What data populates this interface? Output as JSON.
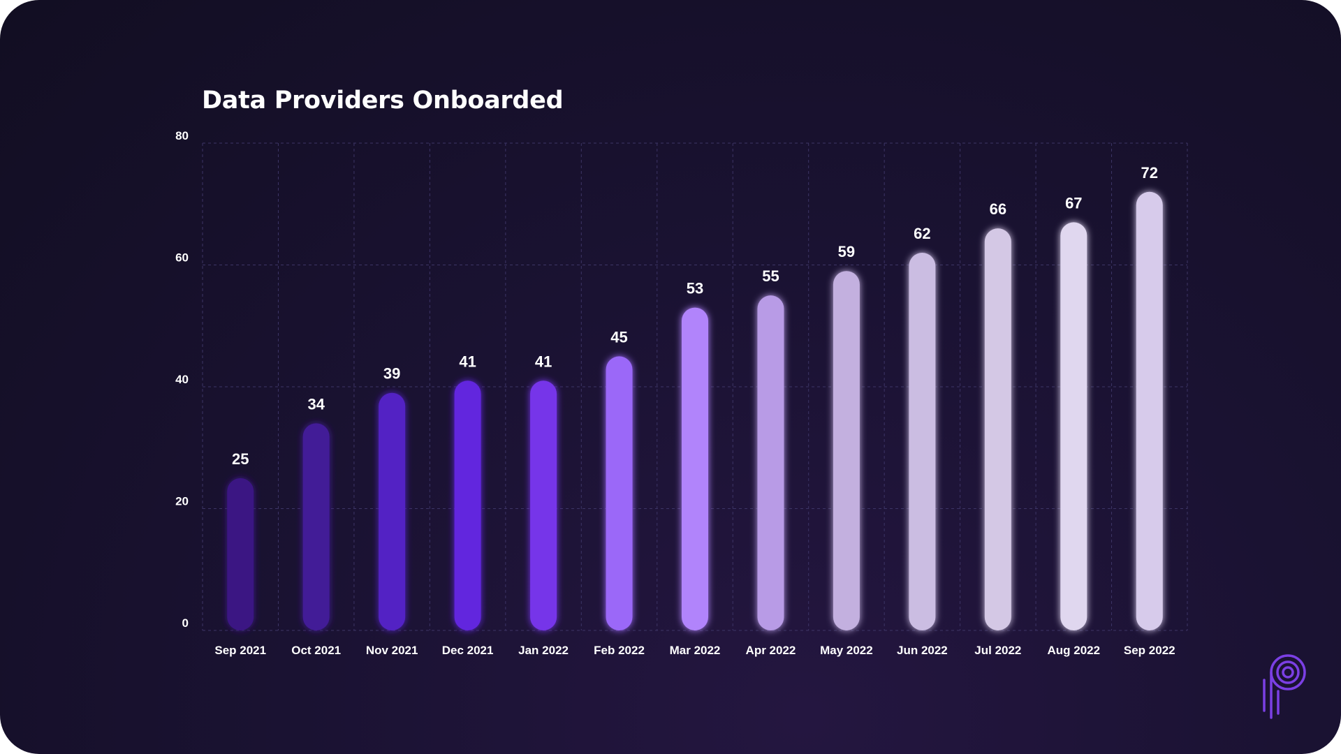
{
  "chart_data": {
    "type": "bar",
    "title": "Data Providers Onboarded",
    "xlabel": "",
    "ylabel": "",
    "categories": [
      "Sep 2021",
      "Oct 2021",
      "Nov 2021",
      "Dec 2021",
      "Jan 2022",
      "Feb 2022",
      "Mar 2022",
      "Apr 2022",
      "May 2022",
      "Jun 2022",
      "Jul 2022",
      "Aug 2022",
      "Sep 2022"
    ],
    "values": [
      25,
      34,
      39,
      41,
      41,
      45,
      53,
      55,
      59,
      62,
      66,
      67,
      72
    ],
    "bar_colors": [
      "#3a1383",
      "#431c97",
      "#5220c4",
      "#6225de",
      "#7634e9",
      "#9b67f8",
      "#b184fb",
      "#b89be6",
      "#c3b0df",
      "#cbbde2",
      "#d4c8e5",
      "#e0d7ef",
      "#d7cbeb"
    ],
    "ylim": [
      0,
      80
    ],
    "yticks": [
      0,
      20,
      40,
      60,
      80
    ],
    "grid": true,
    "data_labels": true,
    "legend": "none"
  },
  "colors": {
    "background": "#160f2a",
    "grid": "#3d3566",
    "text": "#ffffff",
    "logo": "#7b3fe4"
  },
  "logo": {
    "icon": "brand-p-logo-icon"
  }
}
